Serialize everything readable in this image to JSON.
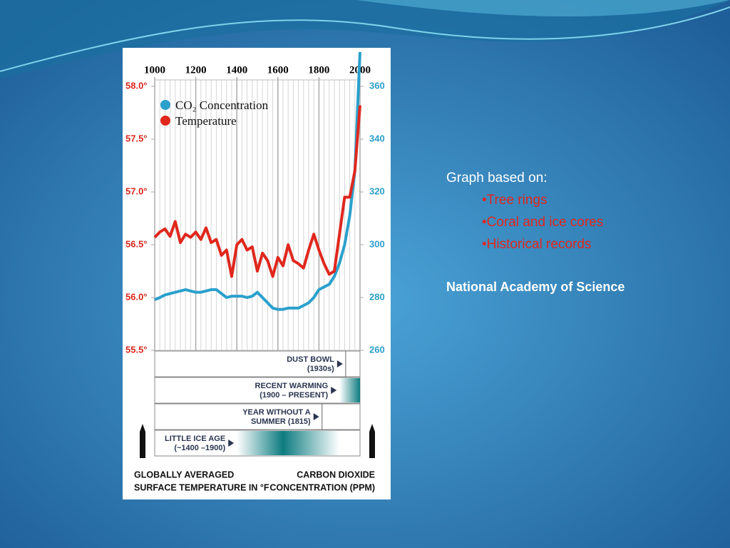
{
  "slide": {
    "heading": "Graph based on:",
    "bullets": [
      "•Tree rings",
      "•Coral and ice cores",
      "•Historical records"
    ],
    "source": "National Academy of Science"
  },
  "chart_data": {
    "type": "line",
    "x": [
      1000,
      1025,
      1050,
      1075,
      1100,
      1125,
      1150,
      1175,
      1200,
      1225,
      1250,
      1275,
      1300,
      1325,
      1350,
      1375,
      1400,
      1425,
      1450,
      1475,
      1500,
      1525,
      1550,
      1575,
      1600,
      1625,
      1650,
      1675,
      1700,
      1725,
      1750,
      1775,
      1800,
      1825,
      1850,
      1875,
      1900,
      1925,
      1950,
      1975,
      2000
    ],
    "xlim": [
      1000,
      2000
    ],
    "xticks": [
      1000,
      1200,
      1400,
      1600,
      1800,
      2000
    ],
    "ylim": [
      55.5,
      58.0
    ],
    "yticks": [
      {
        "value": 55.5,
        "label": "55.5°"
      },
      {
        "value": 56.0,
        "label": "56.0°"
      },
      {
        "value": 56.5,
        "label": "56.5°"
      },
      {
        "value": 57.0,
        "label": "57.0°"
      },
      {
        "value": 57.5,
        "label": "57.5°"
      },
      {
        "value": 58.0,
        "label": "58.0°"
      }
    ],
    "y2lim": [
      260,
      360
    ],
    "y2ticks": [
      260,
      280,
      300,
      320,
      340,
      360
    ],
    "ylabel": [
      "GLOBALLY AVERAGED",
      "SURFACE TEMPERATURE IN °F"
    ],
    "y2label": [
      "CARBON DIOXIDE",
      "CONCENTRATION (PPM)"
    ],
    "series": [
      {
        "name": "CO₂ Concentration",
        "color": "#2aa0cc",
        "axis": "y2",
        "values": [
          279.2,
          280,
          281,
          281.5,
          282,
          282.5,
          283,
          282.5,
          282,
          282,
          282.5,
          283,
          283,
          281.5,
          280,
          280.5,
          280.5,
          280.5,
          280,
          280.5,
          282,
          280,
          278,
          276,
          275.5,
          275.5,
          276,
          276,
          276,
          277,
          278,
          280,
          283,
          284,
          285,
          288,
          293,
          300,
          311,
          328,
          373
        ]
      },
      {
        "name": "Temperature",
        "color": "#e0271d",
        "values": [
          56.57,
          56.62,
          56.65,
          56.58,
          56.72,
          56.52,
          56.6,
          56.57,
          56.62,
          56.55,
          56.66,
          56.52,
          56.55,
          56.4,
          56.45,
          56.2,
          56.5,
          56.55,
          56.45,
          56.48,
          56.25,
          56.42,
          56.35,
          56.2,
          56.38,
          56.3,
          56.5,
          56.35,
          56.32,
          56.28,
          56.45,
          56.6,
          56.45,
          56.32,
          56.22,
          56.25,
          56.6,
          56.95,
          56.95,
          57.2,
          57.82
        ]
      }
    ],
    "events": [
      {
        "lines": [
          "DUST BOWL",
          "(1930s)"
        ],
        "start": 1930,
        "end": 1940
      },
      {
        "lines": [
          "RECENT WARMING",
          "(1900 – PRESENT)"
        ],
        "start": 1900,
        "end": 2000
      },
      {
        "lines": [
          "YEAR WITHOUT A",
          "SUMMER (1815)"
        ],
        "start": 1815,
        "end": 1816
      },
      {
        "lines": [
          "LITTLE ICE AGE",
          "(~1400 –1900)"
        ],
        "start": 1400,
        "end": 1900
      }
    ]
  }
}
